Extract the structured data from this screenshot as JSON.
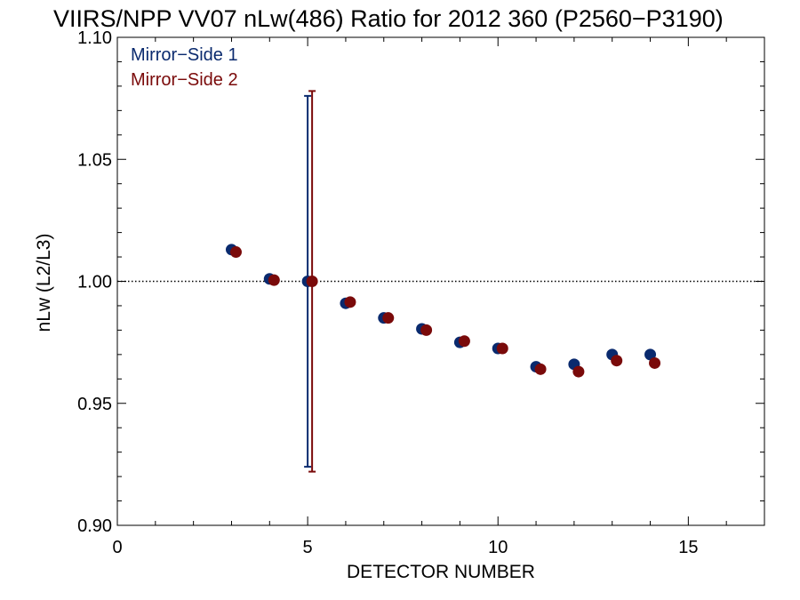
{
  "chart_data": {
    "type": "scatter",
    "title": "VIIRS/NPP VV07 nLw(486) Ratio for 2012 360 (P2560−P3190)",
    "xlabel": "DETECTOR NUMBER",
    "ylabel": "nLw (L2/L3)",
    "xlim": [
      0,
      17
    ],
    "ylim": [
      0.9,
      1.1
    ],
    "x_ticks": [
      0,
      5,
      10,
      15
    ],
    "x_tick_labels": [
      "0",
      "5",
      "10",
      "15"
    ],
    "y_ticks": [
      0.9,
      0.95,
      1.0,
      1.05,
      1.1
    ],
    "y_tick_labels": [
      "0.90",
      "0.95",
      "1.00",
      "1.05",
      "1.10"
    ],
    "reference_line": 1.0,
    "grid": false,
    "legend_position": "top-left",
    "series": [
      {
        "name": "Mirror−Side 1",
        "color": "#0a2a6e",
        "x": [
          3,
          4,
          5,
          6,
          7,
          8,
          9,
          10,
          11,
          12,
          13,
          14
        ],
        "y": [
          1.013,
          1.001,
          1.0,
          0.991,
          0.985,
          0.9805,
          0.975,
          0.9725,
          0.965,
          0.966,
          0.97,
          0.97
        ],
        "error_bar": {
          "x": 5,
          "low": 0.924,
          "high": 1.076
        }
      },
      {
        "name": "Mirror−Side 2",
        "color": "#7a0a0a",
        "x": [
          3,
          4,
          5,
          6,
          7,
          8,
          9,
          10,
          11,
          12,
          13,
          14
        ],
        "y": [
          1.012,
          1.0005,
          1.0,
          0.9915,
          0.985,
          0.98,
          0.9755,
          0.9725,
          0.964,
          0.963,
          0.9675,
          0.9665
        ],
        "error_bar": {
          "x": 5,
          "low": 0.922,
          "high": 1.078
        }
      }
    ]
  }
}
